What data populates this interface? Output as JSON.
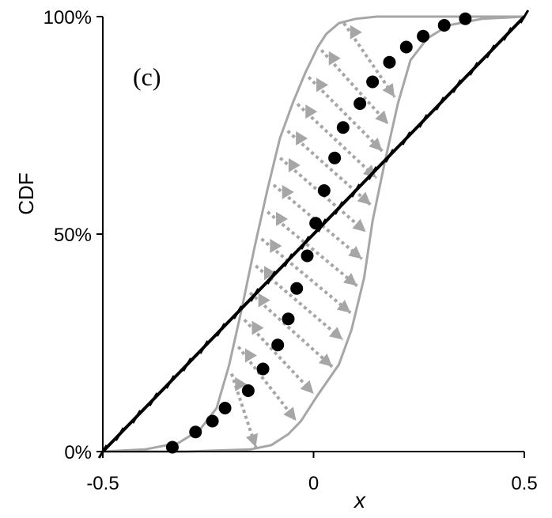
{
  "chart_data": {
    "type": "line",
    "panel_label": "(c)",
    "xlabel": "x",
    "ylabel": "CDF",
    "xlim": [
      -0.5,
      0.5
    ],
    "ylim": [
      0,
      1
    ],
    "x_ticks": [
      {
        "value": -0.5,
        "label": "-0.5"
      },
      {
        "value": 0,
        "label": "0"
      },
      {
        "value": 0.5,
        "label": "0.5"
      }
    ],
    "y_ticks": [
      {
        "value": 0,
        "label": "0%"
      },
      {
        "value": 0.5,
        "label": "50%"
      },
      {
        "value": 1,
        "label": "100%"
      }
    ],
    "colors": {
      "envelope": "#a6a6a6",
      "arrows": "#a6a6a6",
      "linear": "#000000",
      "dots": "#000000"
    },
    "series": [
      {
        "style": "gray-envelope-left",
        "x": [
          -0.5,
          -0.4,
          -0.32,
          -0.27,
          -0.23,
          -0.2,
          -0.17,
          -0.14,
          -0.11,
          -0.08,
          -0.05,
          -0.02,
          0.01,
          0.03,
          0.06,
          0.1,
          0.15,
          0.3,
          0.5
        ],
        "y": [
          0.0,
          0.005,
          0.02,
          0.05,
          0.1,
          0.2,
          0.33,
          0.47,
          0.6,
          0.72,
          0.8,
          0.87,
          0.93,
          0.96,
          0.985,
          0.995,
          1.0,
          1.0,
          1.0
        ]
      },
      {
        "style": "gray-envelope-right",
        "x": [
          -0.5,
          -0.3,
          -0.15,
          -0.1,
          -0.06,
          -0.03,
          0.01,
          0.06,
          0.09,
          0.12,
          0.14,
          0.17,
          0.2,
          0.23,
          0.27,
          0.32,
          0.4,
          0.5
        ],
        "y": [
          0.0,
          0.0,
          0.005,
          0.015,
          0.04,
          0.07,
          0.13,
          0.2,
          0.28,
          0.4,
          0.53,
          0.67,
          0.8,
          0.9,
          0.95,
          0.98,
          0.995,
          1.0
        ]
      },
      {
        "style": "black-line-x-markers",
        "x": [
          -0.5,
          -0.46,
          -0.42,
          -0.38,
          -0.34,
          -0.3,
          -0.26,
          -0.22,
          -0.18,
          -0.14,
          -0.1,
          -0.06,
          -0.02,
          0.02,
          0.06,
          0.1,
          0.14,
          0.18,
          0.22,
          0.26,
          0.3,
          0.34,
          0.38,
          0.42,
          0.46,
          0.5
        ],
        "y": [
          0.0,
          0.04,
          0.08,
          0.12,
          0.16,
          0.2,
          0.24,
          0.28,
          0.32,
          0.36,
          0.4,
          0.44,
          0.48,
          0.52,
          0.56,
          0.6,
          0.64,
          0.68,
          0.72,
          0.76,
          0.8,
          0.84,
          0.88,
          0.92,
          0.96,
          1.0
        ]
      },
      {
        "style": "black-dots",
        "x": [
          -0.335,
          -0.28,
          -0.24,
          -0.21,
          -0.155,
          -0.12,
          -0.085,
          -0.06,
          -0.04,
          -0.015,
          0.005,
          0.025,
          0.05,
          0.07,
          0.11,
          0.14,
          0.18,
          0.22,
          0.26,
          0.31,
          0.36
        ],
        "y": [
          0.01,
          0.045,
          0.07,
          0.1,
          0.14,
          0.19,
          0.245,
          0.305,
          0.375,
          0.45,
          0.525,
          0.6,
          0.675,
          0.745,
          0.8,
          0.85,
          0.895,
          0.93,
          0.955,
          0.98,
          0.995
        ]
      }
    ]
  }
}
